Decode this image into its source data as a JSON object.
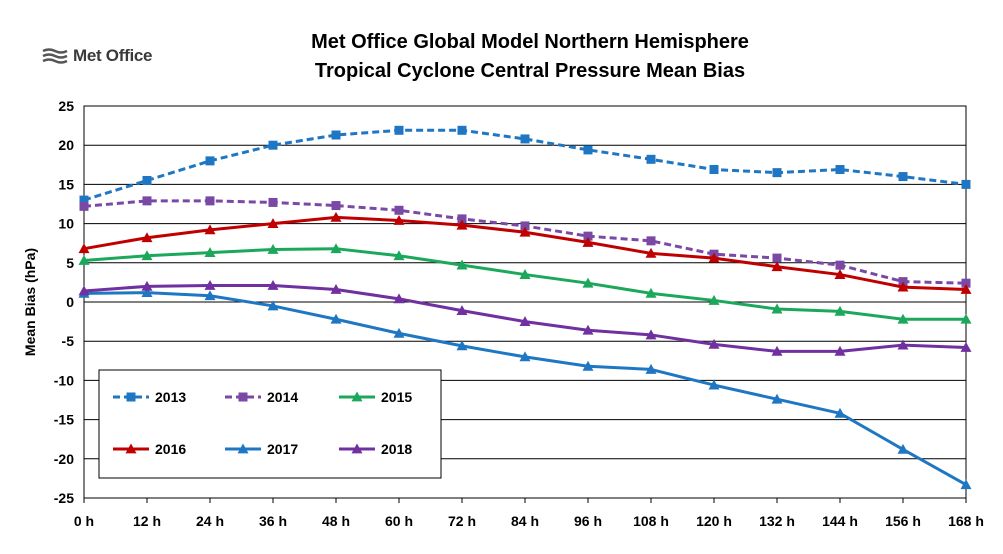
{
  "logo": {
    "text": "Met Office"
  },
  "chart_data": {
    "type": "line",
    "title_line1": "Met Office Global Model Northern Hemisphere",
    "title_line2": "Tropical Cyclone Central Pressure Mean Bias",
    "xlabel": "",
    "ylabel": "Mean Bias (hPa)",
    "categories": [
      "0 h",
      "12 h",
      "24 h",
      "36 h",
      "48 h",
      "60 h",
      "72 h",
      "84 h",
      "96 h",
      "108 h",
      "120 h",
      "132 h",
      "144 h",
      "156 h",
      "168 h"
    ],
    "ylim": [
      -25,
      25
    ],
    "yticks": [
      25,
      20,
      15,
      10,
      5,
      0,
      -5,
      -10,
      -15,
      -20,
      -25
    ],
    "grid": true,
    "legend_position": "bottom-left",
    "series": [
      {
        "name": "2013",
        "color": "#1F77C4",
        "dash": true,
        "marker": "square",
        "values": [
          13.0,
          15.5,
          18.0,
          20.0,
          21.3,
          21.9,
          21.9,
          20.8,
          19.4,
          18.2,
          16.9,
          16.5,
          16.9,
          16.0,
          15.0
        ]
      },
      {
        "name": "2014",
        "color": "#7A49A5",
        "dash": true,
        "marker": "square",
        "values": [
          12.2,
          12.9,
          12.9,
          12.7,
          12.3,
          11.7,
          10.6,
          9.7,
          8.4,
          7.8,
          6.1,
          5.6,
          4.7,
          2.6,
          2.4
        ]
      },
      {
        "name": "2015",
        "color": "#1BA85A",
        "dash": false,
        "marker": "triangle",
        "values": [
          5.3,
          5.9,
          6.3,
          6.7,
          6.8,
          5.9,
          4.7,
          3.5,
          2.4,
          1.1,
          0.2,
          -0.9,
          -1.2,
          -2.2,
          -2.2
        ]
      },
      {
        "name": "2016",
        "color": "#C00000",
        "dash": false,
        "marker": "triangle",
        "values": [
          6.8,
          8.2,
          9.2,
          10.0,
          10.8,
          10.4,
          9.8,
          8.9,
          7.6,
          6.2,
          5.6,
          4.5,
          3.5,
          1.9,
          1.6
        ]
      },
      {
        "name": "2017",
        "color": "#1F77C4",
        "dash": false,
        "marker": "triangle",
        "values": [
          1.1,
          1.2,
          0.8,
          -0.5,
          -2.2,
          -4.0,
          -5.6,
          -7.0,
          -8.2,
          -8.6,
          -10.6,
          -12.4,
          -14.2,
          -18.8,
          -23.3
        ]
      },
      {
        "name": "2018",
        "color": "#7030A0",
        "dash": false,
        "marker": "triangle",
        "values": [
          1.4,
          2.0,
          2.1,
          2.1,
          1.6,
          0.4,
          -1.1,
          -2.5,
          -3.6,
          -4.2,
          -5.4,
          -6.3,
          -6.3,
          -5.5,
          -5.8
        ]
      }
    ]
  }
}
